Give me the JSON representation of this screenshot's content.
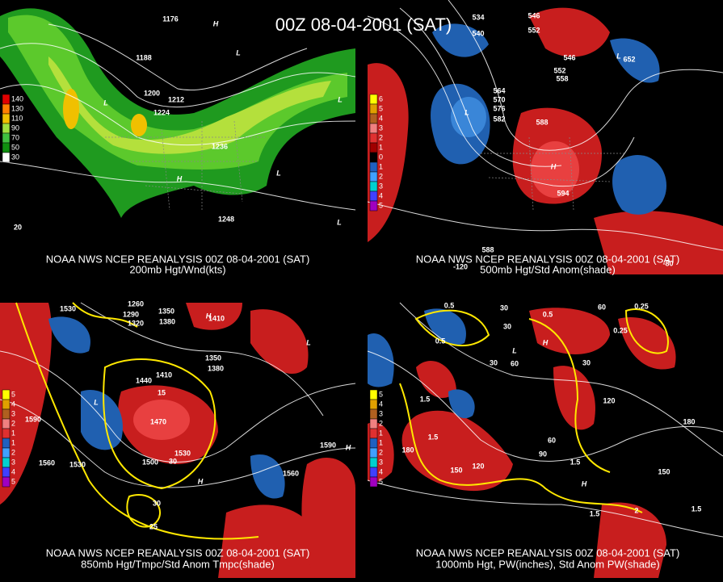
{
  "title": "00Z 08-04-2001 (SAT)",
  "panels": [
    {
      "source": "NOAA NWS NCEP REANALYSIS 00Z 08-04-2001 (SAT)",
      "caption": "200mb Hgt/Wnd(kts)",
      "legend": [
        "140",
        "130",
        "110",
        "90",
        "70",
        "50",
        "30"
      ],
      "labels": [
        "1176",
        "1188",
        "1200",
        "1212",
        "1224",
        "1236",
        "1248",
        "H",
        "L",
        "L",
        "H",
        "L",
        "L",
        "L",
        "20"
      ]
    },
    {
      "source": "NOAA NWS NCEP REANALYSIS 00Z 08-04-2001 (SAT)",
      "caption": "500mb Hgt/Std Anom(shade)",
      "legend": [
        "6",
        "5",
        "4",
        "3",
        "2",
        "1",
        "0",
        "1",
        "2",
        "3",
        "4",
        "5"
      ],
      "labels": [
        "534",
        "546",
        "540",
        "552",
        "652",
        "546",
        "552",
        "558",
        "564",
        "570",
        "576",
        "582",
        "588",
        "594",
        "L",
        "H",
        "L",
        "588",
        "-120",
        "-80"
      ]
    },
    {
      "source": "NOAA NWS NCEP REANALYSIS 00Z 08-04-2001 (SAT)",
      "caption": "850mb Hgt/Tmpc/Std Anom Tmpc(shade)",
      "legend": [
        "5",
        "4",
        "3",
        "2",
        "1",
        "1",
        "2",
        "3",
        "4",
        "5"
      ],
      "labels": [
        "1530",
        "1260",
        "1290",
        "1320",
        "1350",
        "1380",
        "1410",
        "1440",
        "1410",
        "1470",
        "1590",
        "1560",
        "1530",
        "1500",
        "1530",
        "1590",
        "1560",
        "15",
        "30",
        "25",
        "30",
        "1350",
        "1380",
        "H",
        "L",
        "H",
        "L",
        "H"
      ]
    },
    {
      "source": "NOAA NWS NCEP REANALYSIS 00Z 08-04-2001 (SAT)",
      "caption": "1000mb Hgt, PW(inches), Std Anom PW(shade)",
      "legend": [
        "5",
        "4",
        "3",
        "2",
        "1",
        "1",
        "2",
        "3",
        "4",
        "5"
      ],
      "labels": [
        "0.5",
        "30",
        "0.5",
        "30",
        "0.5",
        "60",
        "0.25",
        "0.25",
        "30",
        "60",
        "30",
        "120",
        "180",
        "150",
        "120",
        "60",
        "90",
        "180",
        "150",
        "1.5",
        "1.5",
        "1.5",
        "1.5",
        "2",
        "1.5",
        "H",
        "L",
        "H"
      ]
    }
  ]
}
